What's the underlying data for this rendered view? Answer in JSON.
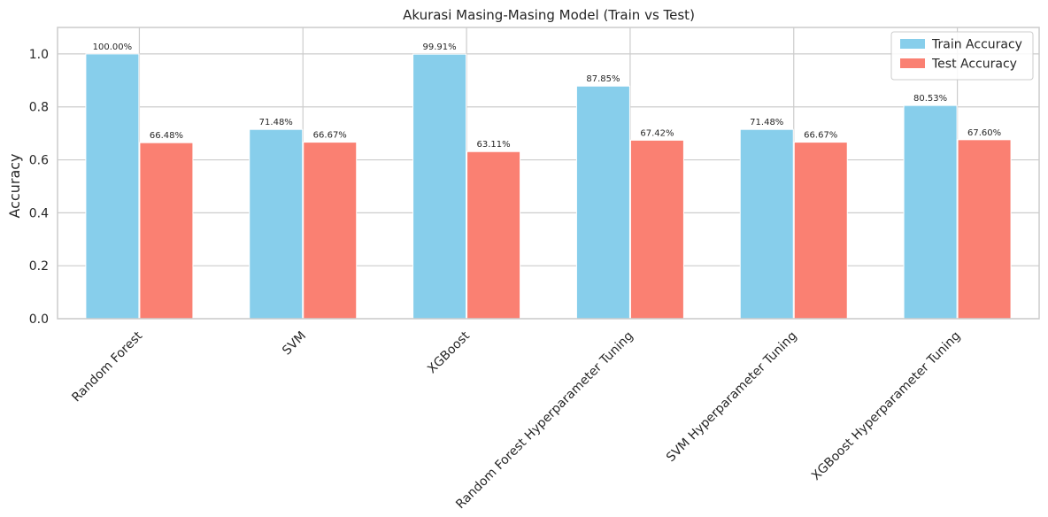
{
  "chart_data": {
    "type": "bar",
    "title": "Akurasi Masing-Masing Model (Train vs Test)",
    "xlabel": "",
    "ylabel": "Accuracy",
    "ylim": [
      0,
      1.1
    ],
    "yticks": [
      0.0,
      0.2,
      0.4,
      0.6,
      0.8,
      1.0
    ],
    "ytick_labels": [
      "0.0",
      "0.2",
      "0.4",
      "0.6",
      "0.8",
      "1.0"
    ],
    "grid": true,
    "legend_position": "top-right",
    "categories": [
      "Random Forest",
      "SVM",
      "XGBoost",
      "Random Forest Hyperparameter Tuning",
      "SVM Hyperparameter Tuning",
      "XGBoost Hyperparameter Tuning"
    ],
    "series": [
      {
        "name": "Train Accuracy",
        "color": "#87CEEB",
        "values": [
          1.0,
          0.7148,
          0.9991,
          0.8785,
          0.7148,
          0.8053
        ],
        "labels": [
          "100.00%",
          "71.48%",
          "99.91%",
          "87.85%",
          "71.48%",
          "80.53%"
        ]
      },
      {
        "name": "Test Accuracy",
        "color": "#FA8072",
        "values": [
          0.6648,
          0.6667,
          0.6311,
          0.6742,
          0.6667,
          0.676
        ],
        "labels": [
          "66.48%",
          "66.67%",
          "63.11%",
          "67.42%",
          "66.67%",
          "67.60%"
        ]
      }
    ]
  }
}
